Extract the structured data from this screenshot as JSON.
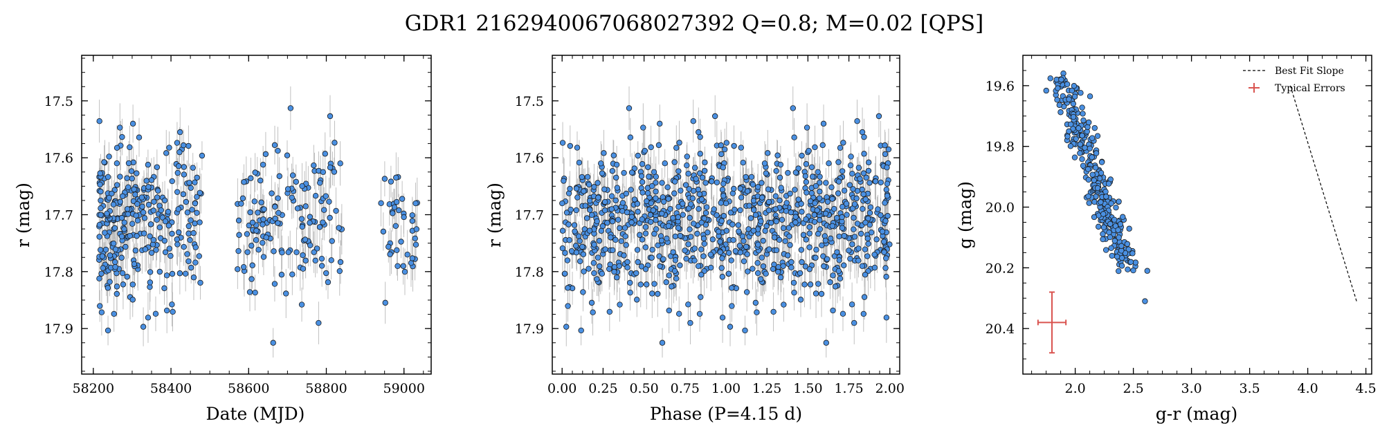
{
  "title": "GDR1 2162940067068027392  Q=0.8; M=0.02 [QPS]",
  "colors": {
    "point": "#4a90e2",
    "edge": "#1a1a1a",
    "errbar": "#b0b0b0",
    "typical": "#d9534f",
    "axis": "#000000"
  },
  "chart_data": [
    {
      "type": "scatter",
      "panel": "lightcurve",
      "xlabel": "Date (MJD)",
      "ylabel": "r (mag)",
      "xlim": [
        58170,
        59070
      ],
      "ylim": [
        17.98,
        17.42
      ],
      "y_inverted": true,
      "xticks": [
        58200,
        58400,
        58600,
        58800,
        59000
      ],
      "yticks": [
        17.5,
        17.6,
        17.7,
        17.8,
        17.9
      ],
      "ytick_labels": [
        "17.5",
        "17.6",
        "17.7",
        "17.8",
        "17.9"
      ],
      "series": [
        {
          "points": [],
          "typical_error": 0.03
        }
      ],
      "notes": "Point cloud of ~400 observations; clusters around 58200-58480, 58570-58840, 58940-59040"
    },
    {
      "type": "scatter",
      "panel": "phase",
      "xlabel": "Phase (P=4.15 d)",
      "ylabel": "r (mag)",
      "xlim": [
        -0.06,
        2.06
      ],
      "ylim": [
        17.98,
        17.42
      ],
      "y_inverted": true,
      "xticks": [
        0.0,
        0.25,
        0.5,
        0.75,
        1.0,
        1.25,
        1.5,
        1.75,
        2.0
      ],
      "xtick_labels": [
        "0.00",
        "0.25",
        "0.50",
        "0.75",
        "1.00",
        "1.25",
        "1.50",
        "1.75",
        "2.00"
      ],
      "yticks": [
        17.5,
        17.6,
        17.7,
        17.8,
        17.9
      ],
      "ytick_labels": [
        "17.5",
        "17.6",
        "17.7",
        "17.8",
        "17.9"
      ],
      "period_days": 4.15
    },
    {
      "type": "scatter",
      "panel": "color-magnitude",
      "xlabel": "g-r (mag)",
      "ylabel": "g (mag)",
      "xlim": [
        1.55,
        4.55
      ],
      "ylim": [
        20.55,
        19.5
      ],
      "y_inverted": true,
      "xticks": [
        2.0,
        2.5,
        3.0,
        3.5,
        4.0,
        4.5
      ],
      "xtick_labels": [
        "2.0",
        "2.5",
        "3.0",
        "3.5",
        "4.0",
        "4.5"
      ],
      "yticks": [
        19.6,
        19.8,
        20.0,
        20.2,
        20.4
      ],
      "ytick_labels": [
        "19.6",
        "19.8",
        "20.0",
        "20.2",
        "20.4"
      ],
      "best_fit_line": {
        "x": [
          3.85,
          4.42
        ],
        "y": [
          19.6,
          20.31
        ]
      },
      "typical_error": {
        "x": 1.8,
        "y": 20.38,
        "xerr": 0.12,
        "yerr": 0.1
      },
      "legend": {
        "position": "top-right",
        "entries": [
          "Best Fit Slope",
          "Typical Errors"
        ]
      }
    }
  ]
}
